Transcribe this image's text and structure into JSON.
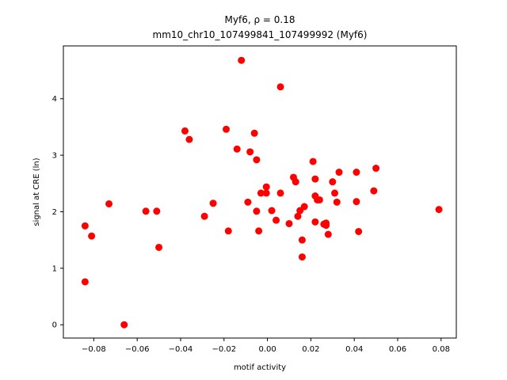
{
  "chart_data": {
    "type": "scatter",
    "title_line1": "Myf6, ρ = 0.18",
    "title_line2": "mm10_chr10_107499841_107499992 (Myf6)",
    "xlabel": "motif activity",
    "ylabel": "signal at CRE (ln)",
    "xlim": [
      -0.094,
      0.087
    ],
    "ylim": [
      -0.235,
      4.935
    ],
    "xticks": [
      -0.08,
      -0.06,
      -0.04,
      -0.02,
      0.0,
      0.02,
      0.04,
      0.06,
      0.08
    ],
    "xtick_labels": [
      "−0.08",
      "−0.06",
      "−0.04",
      "−0.02",
      "0.00",
      "0.02",
      "0.04",
      "0.06",
      "0.08"
    ],
    "yticks": [
      0,
      1,
      2,
      3,
      4
    ],
    "ytick_labels": [
      "0",
      "1",
      "2",
      "3",
      "4"
    ],
    "grid": false,
    "marker_color": "#ff0000",
    "x": [
      -0.084,
      -0.084,
      -0.081,
      -0.073,
      -0.066,
      -0.056,
      -0.051,
      -0.05,
      -0.038,
      -0.036,
      -0.029,
      -0.025,
      -0.019,
      -0.018,
      -0.014,
      -0.012,
      -0.009,
      -0.008,
      -0.006,
      -0.005,
      -0.005,
      -0.004,
      -0.003,
      -0.0005,
      -0.0005,
      0.002,
      0.004,
      0.006,
      0.006,
      0.01,
      0.012,
      0.013,
      0.014,
      0.015,
      0.016,
      0.016,
      0.017,
      0.021,
      0.022,
      0.022,
      0.022,
      0.023,
      0.024,
      0.026,
      0.027,
      0.027,
      0.028,
      0.03,
      0.031,
      0.032,
      0.033,
      0.041,
      0.041,
      0.042,
      0.049,
      0.05,
      0.079
    ],
    "y": [
      1.75,
      0.76,
      1.57,
      2.14,
      0.0,
      2.01,
      2.01,
      1.37,
      3.43,
      3.28,
      1.92,
      2.15,
      3.46,
      1.66,
      3.11,
      4.68,
      2.17,
      3.06,
      3.39,
      2.92,
      2.01,
      1.66,
      2.33,
      2.44,
      2.33,
      2.02,
      1.85,
      4.21,
      2.33,
      1.79,
      2.61,
      2.53,
      1.92,
      2.02,
      1.2,
      1.5,
      2.09,
      2.89,
      2.28,
      1.82,
      2.58,
      2.21,
      2.21,
      1.78,
      1.8,
      1.76,
      1.6,
      2.53,
      2.33,
      2.17,
      2.7,
      2.7,
      2.18,
      1.65,
      2.37,
      2.77,
      2.04
    ]
  }
}
